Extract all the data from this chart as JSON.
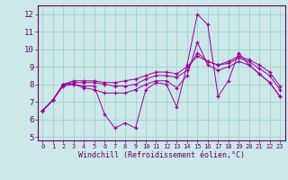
{
  "xlabel": "Windchill (Refroidissement éolien,°C)",
  "background_color": "#cce8e8",
  "line_color": "#990099",
  "x_values": [
    0,
    1,
    2,
    3,
    4,
    5,
    6,
    7,
    8,
    9,
    10,
    11,
    12,
    13,
    14,
    15,
    16,
    17,
    18,
    19,
    20,
    21,
    22,
    23
  ],
  "series1": [
    6.5,
    7.1,
    7.9,
    8.0,
    7.9,
    7.9,
    6.3,
    5.5,
    5.8,
    5.5,
    7.7,
    8.1,
    8.0,
    6.7,
    9.1,
    12.0,
    11.4,
    7.3,
    8.2,
    9.8,
    9.1,
    8.6,
    8.1,
    7.3
  ],
  "series2": [
    6.5,
    7.1,
    8.0,
    8.0,
    7.8,
    7.7,
    7.5,
    7.5,
    7.5,
    7.7,
    8.0,
    8.2,
    8.2,
    7.8,
    8.5,
    10.4,
    9.1,
    8.8,
    9.0,
    9.3,
    9.1,
    8.6,
    8.1,
    7.3
  ],
  "series3": [
    6.5,
    7.1,
    8.0,
    8.1,
    8.1,
    8.1,
    8.0,
    7.9,
    7.9,
    8.0,
    8.3,
    8.5,
    8.5,
    8.4,
    8.8,
    9.8,
    9.3,
    9.1,
    9.2,
    9.5,
    9.3,
    8.9,
    8.5,
    7.7
  ],
  "series4": [
    6.5,
    7.1,
    8.0,
    8.2,
    8.2,
    8.2,
    8.1,
    8.1,
    8.2,
    8.3,
    8.5,
    8.7,
    8.7,
    8.6,
    9.0,
    9.6,
    9.3,
    9.1,
    9.3,
    9.6,
    9.4,
    9.1,
    8.7,
    7.9
  ],
  "ylim": [
    4.8,
    12.5
  ],
  "yticks": [
    5,
    6,
    7,
    8,
    9,
    10,
    11,
    12
  ],
  "grid_color": "#99cccc",
  "spine_color": "#660066",
  "tick_label_color": "#660066",
  "xlabel_color": "#660066"
}
